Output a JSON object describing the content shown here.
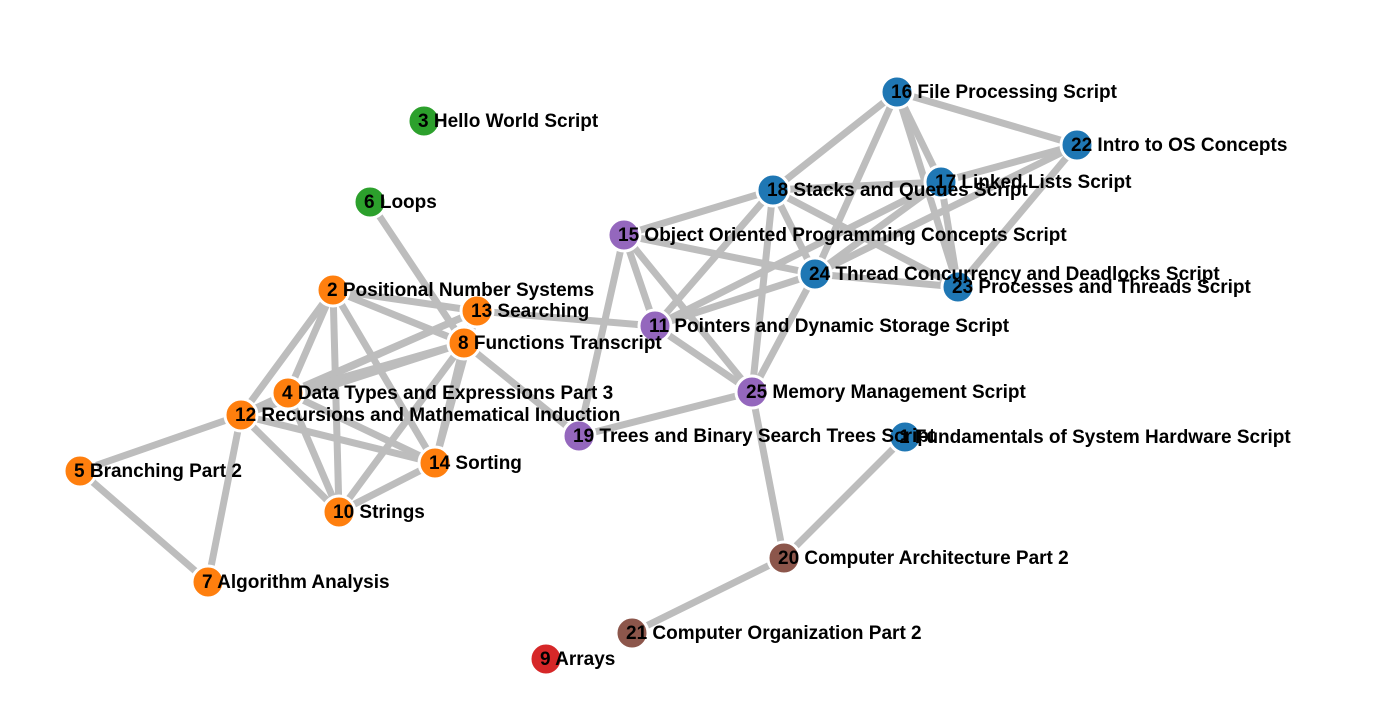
{
  "palette": {
    "orange": "#ff7f0e",
    "green": "#2ca02c",
    "blue": "#1f77b4",
    "purple": "#9467bd",
    "brown": "#8c564b",
    "red": "#d62728",
    "edge": "#bdbdbd"
  },
  "nodes": [
    {
      "id": "1",
      "label": "1 Fundamentals of System Hardware Script",
      "group": "blue"
    },
    {
      "id": "2",
      "label": "2 Positional Number Systems",
      "group": "orange"
    },
    {
      "id": "3",
      "label": "3 Hello World Script",
      "group": "green"
    },
    {
      "id": "4",
      "label": "4 Data Types and Expressions Part 3",
      "group": "orange"
    },
    {
      "id": "5",
      "label": "5 Branching Part 2",
      "group": "orange"
    },
    {
      "id": "6",
      "label": "6 Loops",
      "group": "green"
    },
    {
      "id": "7",
      "label": "7 Algorithm Analysis",
      "group": "orange"
    },
    {
      "id": "8",
      "label": "8 Functions Transcript",
      "group": "orange"
    },
    {
      "id": "9",
      "label": "9 Arrays",
      "group": "red"
    },
    {
      "id": "10",
      "label": "10 Strings",
      "group": "orange"
    },
    {
      "id": "11",
      "label": "11 Pointers and Dynamic Storage Script",
      "group": "purple"
    },
    {
      "id": "12",
      "label": "12 Recursions and Mathematical Induction",
      "group": "orange"
    },
    {
      "id": "13",
      "label": "13 Searching",
      "group": "orange"
    },
    {
      "id": "14",
      "label": "14 Sorting",
      "group": "orange"
    },
    {
      "id": "15",
      "label": "15 Object Oriented Programming Concepts Script",
      "group": "purple"
    },
    {
      "id": "16",
      "label": "16 File Processing Script",
      "group": "blue"
    },
    {
      "id": "17",
      "label": "17 Linked Lists Script",
      "group": "blue"
    },
    {
      "id": "18",
      "label": "18 Stacks and Queues Script",
      "group": "blue"
    },
    {
      "id": "19",
      "label": "19 Trees and Binary Search Trees Script",
      "group": "purple"
    },
    {
      "id": "20",
      "label": "20 Computer Architecture Part 2",
      "group": "brown"
    },
    {
      "id": "21",
      "label": "21 Computer Organization Part 2",
      "group": "brown"
    },
    {
      "id": "22",
      "label": "22 Intro to OS Concepts",
      "group": "blue"
    },
    {
      "id": "23",
      "label": "23 Processes and Threads Script",
      "group": "blue"
    },
    {
      "id": "24",
      "label": "24 Thread Concurrency and Deadlocks Script",
      "group": "blue"
    },
    {
      "id": "25",
      "label": "25 Memory Management Script",
      "group": "purple"
    }
  ],
  "edges": [
    [
      "2",
      "13"
    ],
    [
      "2",
      "8"
    ],
    [
      "2",
      "4"
    ],
    [
      "2",
      "12"
    ],
    [
      "2",
      "10"
    ],
    [
      "2",
      "14"
    ],
    [
      "13",
      "8"
    ],
    [
      "13",
      "4"
    ],
    [
      "13",
      "12"
    ],
    [
      "13",
      "14"
    ],
    [
      "13",
      "11"
    ],
    [
      "8",
      "6"
    ],
    [
      "8",
      "4"
    ],
    [
      "8",
      "12"
    ],
    [
      "8",
      "10"
    ],
    [
      "8",
      "14"
    ],
    [
      "8",
      "19"
    ],
    [
      "4",
      "12"
    ],
    [
      "4",
      "10"
    ],
    [
      "4",
      "14"
    ],
    [
      "12",
      "10"
    ],
    [
      "12",
      "14"
    ],
    [
      "12",
      "5"
    ],
    [
      "12",
      "7"
    ],
    [
      "10",
      "14"
    ],
    [
      "5",
      "7"
    ],
    [
      "15",
      "11"
    ],
    [
      "15",
      "25"
    ],
    [
      "15",
      "18"
    ],
    [
      "15",
      "24"
    ],
    [
      "15",
      "19"
    ],
    [
      "11",
      "18"
    ],
    [
      "11",
      "24"
    ],
    [
      "11",
      "25"
    ],
    [
      "11",
      "17"
    ],
    [
      "25",
      "19"
    ],
    [
      "25",
      "18"
    ],
    [
      "25",
      "24"
    ],
    [
      "25",
      "20"
    ],
    [
      "18",
      "16"
    ],
    [
      "18",
      "17"
    ],
    [
      "18",
      "23"
    ],
    [
      "18",
      "24"
    ],
    [
      "16",
      "22"
    ],
    [
      "16",
      "17"
    ],
    [
      "16",
      "23"
    ],
    [
      "16",
      "24"
    ],
    [
      "22",
      "17"
    ],
    [
      "22",
      "23"
    ],
    [
      "22",
      "24"
    ],
    [
      "17",
      "24"
    ],
    [
      "17",
      "23"
    ],
    [
      "24",
      "23"
    ],
    [
      "20",
      "1"
    ],
    [
      "20",
      "21"
    ]
  ]
}
